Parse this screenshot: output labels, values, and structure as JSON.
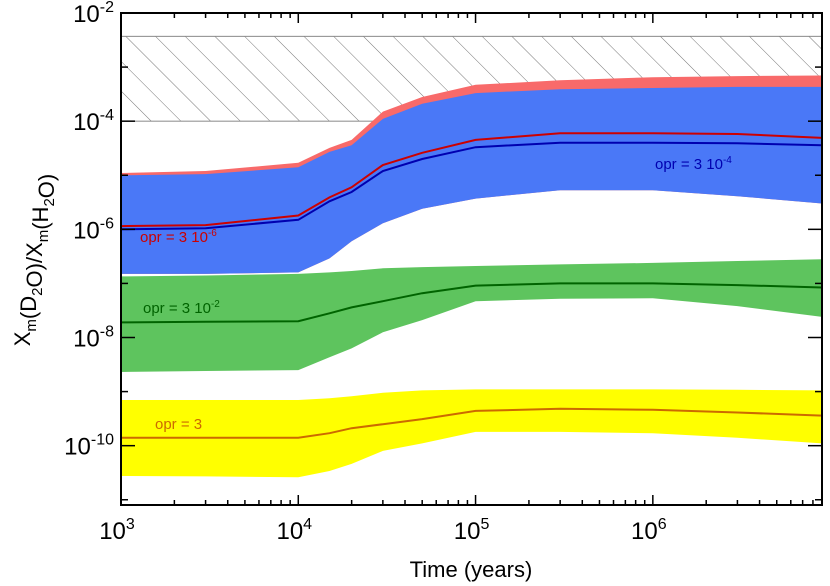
{
  "chart_data": {
    "type": "area",
    "xlabel": "Time (years)",
    "ylabel_parts": [
      [
        "X",
        "m"
      ],
      [
        "(D",
        ""
      ],
      [
        "",
        "2"
      ],
      [
        "O)/X",
        ""
      ],
      [
        "",
        "m"
      ],
      [
        "(H",
        ""
      ],
      [
        "",
        "2"
      ],
      [
        "O)",
        ""
      ]
    ],
    "xscale": "log",
    "yscale": "log",
    "xlim": [
      1000,
      9000000
    ],
    "ylim": [
      8e-12,
      0.01
    ],
    "grid": false,
    "x_ticks": [
      {
        "base": "10",
        "exp": "3",
        "value": 1000
      },
      {
        "base": "10",
        "exp": "4",
        "value": 10000
      },
      {
        "base": "10",
        "exp": "5",
        "value": 100000
      },
      {
        "base": "10",
        "exp": "6",
        "value": 1000000
      }
    ],
    "y_ticks": [
      {
        "base": "10",
        "exp": "-2",
        "value": 0.01
      },
      {
        "base": "10",
        "exp": "-4",
        "value": 0.0001
      },
      {
        "base": "10",
        "exp": "-6",
        "value": 1e-06
      },
      {
        "base": "10",
        "exp": "-8",
        "value": 1e-08
      },
      {
        "base": "10",
        "exp": "-10",
        "value": 1e-10
      }
    ],
    "hatched_region": {
      "y_range": [
        0.0001,
        0.0037
      ],
      "color": "#888888"
    },
    "x": [
      1000,
      3000,
      10000,
      15000,
      20000,
      30000,
      50000,
      100000,
      300000,
      1000000,
      3000000,
      9000000
    ],
    "bands": [
      {
        "label_ref": "opr = 3 10-6",
        "color": "#f86a6a",
        "upper": [
          1.1e-05,
          1.2e-05,
          1.7e-05,
          3.2e-05,
          4.5e-05,
          0.00015,
          0.00028,
          0.00047,
          0.00057,
          0.00065,
          0.00068,
          0.0007
        ],
        "lower": [
          1.5e-07,
          1.5e-07,
          1.6e-07,
          2.9e-07,
          6e-07,
          1.3e-06,
          2.4e-06,
          3.7e-06,
          5.3e-06,
          5.3e-06,
          4.1e-06,
          3e-06
        ]
      },
      {
        "label_ref": "opr = 3 10-4",
        "color": "#4a78f7",
        "upper": [
          1e-05,
          1.05e-05,
          1.4e-05,
          2.7e-05,
          3.6e-05,
          0.00011,
          0.00021,
          0.00033,
          0.00039,
          0.00041,
          0.00043,
          0.00043
        ],
        "lower": [
          1.5e-07,
          1.5e-07,
          1.6e-07,
          2.9e-07,
          6e-07,
          1.3e-06,
          2.4e-06,
          3.7e-06,
          5.3e-06,
          5.3e-06,
          4.1e-06,
          3e-06
        ]
      },
      {
        "label_ref": "opr = 3 10-2",
        "color": "#5ec45e",
        "upper": [
          1.35e-07,
          1.4e-07,
          1.5e-07,
          1.6e-07,
          1.7e-07,
          1.9e-07,
          2e-07,
          2.1e-07,
          2.25e-07,
          2.4e-07,
          2.6e-07,
          2.8e-07
        ],
        "lower": [
          2.3e-09,
          2.4e-09,
          2.5e-09,
          4.3e-09,
          6.3e-09,
          1.25e-08,
          2.1e-08,
          4.7e-08,
          5.2e-08,
          5.3e-08,
          3.8e-08,
          2.4e-08
        ]
      },
      {
        "label_ref": "opr = 3",
        "color": "#ffff00",
        "upper": [
          7e-10,
          7e-10,
          7e-10,
          7.5e-10,
          8.2e-10,
          9.5e-10,
          1.05e-09,
          1.1e-09,
          1.1e-09,
          1.1e-09,
          1.08e-09,
          1.05e-09
        ],
        "lower": [
          2.75e-11,
          2.7e-11,
          2.6e-11,
          3.4e-11,
          4.6e-11,
          8e-11,
          1.1e-10,
          1.8e-10,
          1.8e-10,
          1.7e-10,
          1.4e-10,
          1.1e-10
        ]
      }
    ],
    "series": [
      {
        "label": "opr = 3 10",
        "exp": "-6",
        "color": "#cc0000",
        "values": [
          1.15e-06,
          1.2e-06,
          1.8e-06,
          3.9e-06,
          6e-06,
          1.55e-05,
          2.6e-05,
          4.5e-05,
          6e-05,
          6e-05,
          5.8e-05,
          4.9e-05
        ]
      },
      {
        "label": "opr = 3 10",
        "exp": "-4",
        "color": "#0000b0",
        "values": [
          1e-06,
          1.05e-06,
          1.5e-06,
          3.3e-06,
          4.9e-06,
          1.2e-05,
          2e-05,
          3.3e-05,
          4e-05,
          4e-05,
          3.9e-05,
          3.6e-05
        ]
      },
      {
        "label": "opr = 3 10",
        "exp": "-2",
        "color": "#006400",
        "values": [
          1.9e-08,
          1.95e-08,
          2e-08,
          2.8e-08,
          3.6e-08,
          4.7e-08,
          6.6e-08,
          9.1e-08,
          1e-07,
          1e-07,
          9.3e-08,
          8.4e-08
        ]
      },
      {
        "label": "opr = 3",
        "exp": "",
        "color": "#cc6a00",
        "values": [
          1.4e-10,
          1.4e-10,
          1.4e-10,
          1.7e-10,
          2.1e-10,
          2.5e-10,
          3.1e-10,
          4.4e-10,
          4.8e-10,
          4.6e-10,
          4.1e-10,
          3.6e-10
        ]
      }
    ]
  }
}
